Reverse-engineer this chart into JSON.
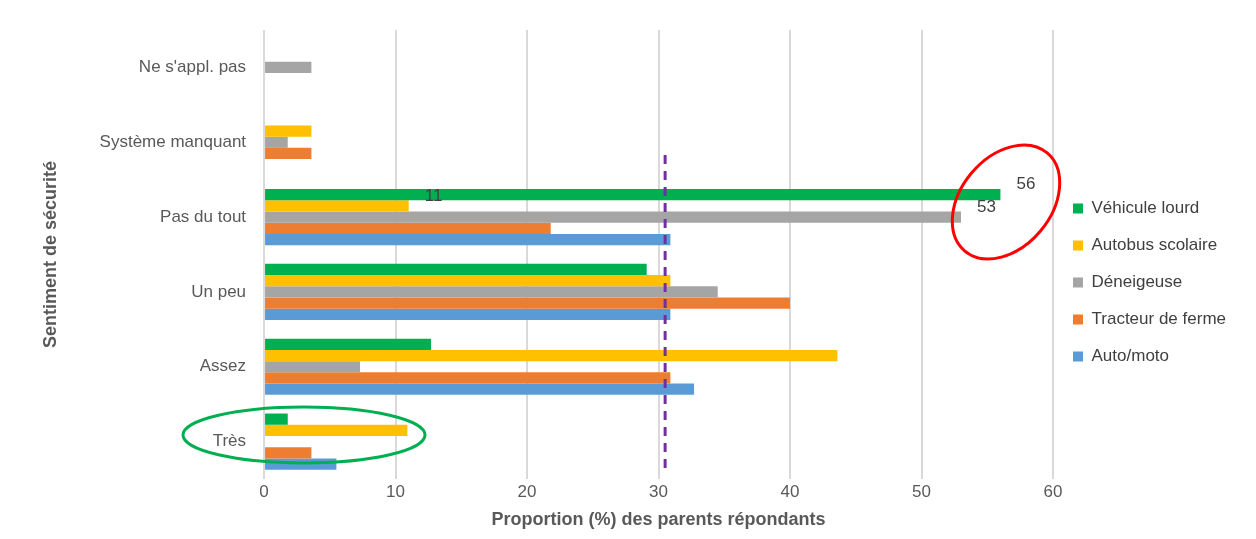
{
  "chart_data": {
    "type": "bar",
    "orientation": "horizontal",
    "xlabel": "Proportion (%) des parents répondants",
    "ylabel": "Sentiment de sécurité",
    "categories": [
      "Ne s'appl. pas",
      "Système manquant",
      "Pas du tout",
      "Un peu",
      "Assez",
      "Très"
    ],
    "series": [
      {
        "name": "Véhicule lourd",
        "color": "#00b050",
        "values": [
          null,
          null,
          56,
          29.1,
          12.7,
          1.8
        ],
        "value_labels": [
          null,
          null,
          "56",
          null,
          null,
          null
        ]
      },
      {
        "name": "Autobus scolaire",
        "color": "#ffc000",
        "values": [
          null,
          3.6,
          11,
          30.9,
          43.6,
          10.9
        ],
        "value_labels": [
          null,
          null,
          "11",
          null,
          null,
          null
        ]
      },
      {
        "name": "Déneigeuse",
        "color": "#a5a5a5",
        "values": [
          3.6,
          1.8,
          53,
          34.5,
          7.3,
          null
        ],
        "value_labels": [
          null,
          null,
          "53",
          null,
          null,
          null
        ]
      },
      {
        "name": "Tracteur de ferme",
        "color": "#ed7d31",
        "values": [
          null,
          3.6,
          21.8,
          40,
          30.9,
          3.6
        ]
      },
      {
        "name": "Auto/moto",
        "color": "#5b9bd5",
        "values": [
          null,
          null,
          30.9,
          30.9,
          32.7,
          5.5
        ]
      }
    ],
    "xlim": [
      0,
      60
    ],
    "xticks": [
      0,
      10,
      20,
      30,
      40,
      50,
      60
    ],
    "grid": "x",
    "legend": "right",
    "ref_lines": [
      {
        "axis": "x",
        "value": 30.5,
        "color": "#7030a0",
        "line_style": "dashed"
      }
    ]
  }
}
